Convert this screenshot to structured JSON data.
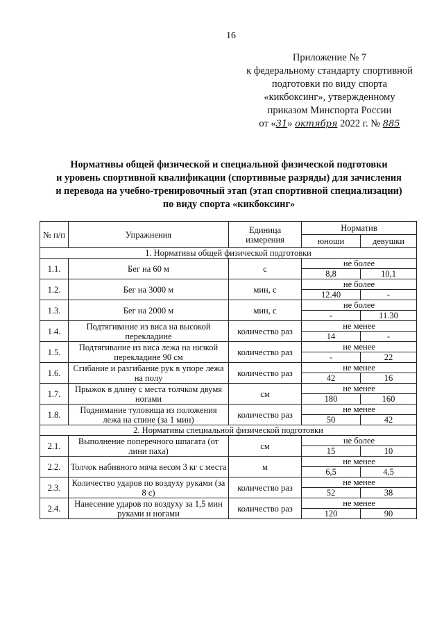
{
  "page_number": "16",
  "appendix": {
    "line1": "Приложение № 7",
    "line2": "к федеральному стандарту спортивной",
    "line3": "подготовки по виду спорта",
    "line4": "«кикбоксинг», утвержденному",
    "line5": "приказом Минспорта России",
    "date_prefix": "от «",
    "day": "31",
    "date_mid": "»",
    "month": "октября",
    "year": "2022 г. №",
    "number": "885"
  },
  "title": {
    "line1": "Нормативы общей физической и специальной физической подготовки",
    "line2": "и уровень спортивной квалификации (спортивные разряды) для зачисления",
    "line3": "и перевода на учебно-тренировочный этап (этап спортивной специализации)",
    "line4": "по виду спорта «кикбоксинг»"
  },
  "table": {
    "headers": {
      "num": "№ п/п",
      "exercise": "Упражнения",
      "unit": "Единица измерения",
      "norm": "Норматив",
      "boys": "юноши",
      "girls": "девушки"
    },
    "sections": [
      {
        "title": "1. Нормативы общей физической подготовки",
        "rows": [
          {
            "num": "1.1.",
            "exercise": "Бег на 60 м",
            "unit": "с",
            "cond": "не более",
            "boys": "8,8",
            "girls": "10,1"
          },
          {
            "num": "1.2.",
            "exercise": "Бег на 3000 м",
            "unit": "мин, с",
            "cond": "не более",
            "boys": "12.40",
            "girls": "-"
          },
          {
            "num": "1.3.",
            "exercise": "Бег на 2000 м",
            "unit": "мин, с",
            "cond": "не более",
            "boys": "-",
            "girls": "11.30"
          },
          {
            "num": "1.4.",
            "exercise": "Подтягивание из виса на высокой перекладине",
            "unit": "количество раз",
            "cond": "не менее",
            "boys": "14",
            "girls": "-"
          },
          {
            "num": "1.5.",
            "exercise": "Подтягивание из виса лежа на низкой перекладине 90 см",
            "unit": "количество раз",
            "cond": "не менее",
            "boys": "-",
            "girls": "22"
          },
          {
            "num": "1.6.",
            "exercise": "Сгибание и разгибание рук в упоре лежа на полу",
            "unit": "количество раз",
            "cond": "не менее",
            "boys": "42",
            "girls": "16"
          },
          {
            "num": "1.7.",
            "exercise": "Прыжок в длину с места толчком двумя ногами",
            "unit": "см",
            "cond": "не менее",
            "boys": "180",
            "girls": "160"
          },
          {
            "num": "1.8.",
            "exercise": "Поднимание туловища из положения лежа на спине (за 1 мин)",
            "unit": "количество раз",
            "cond": "не менее",
            "boys": "50",
            "girls": "42"
          }
        ]
      },
      {
        "title": "2. Нормативы специальной физической подготовки",
        "rows": [
          {
            "num": "2.1.",
            "exercise": "Выполнение поперечного шпагата (от лини паха)",
            "unit": "см",
            "cond": "не более",
            "boys": "15",
            "girls": "10"
          },
          {
            "num": "2.2.",
            "exercise": "Толчок набивного мяча весом 3 кг с места",
            "unit": "м",
            "cond": "не менее",
            "boys": "6,5",
            "girls": "4,5"
          },
          {
            "num": "2.3.",
            "exercise": "Количество ударов по воздуху руками (за 8 с)",
            "unit": "количество раз",
            "cond": "не менее",
            "boys": "52",
            "girls": "38"
          },
          {
            "num": "2.4.",
            "exercise": "Нанесение ударов по воздуху за 1,5 мин руками и ногами",
            "unit": "количество раз",
            "cond": "не менее",
            "boys": "120",
            "girls": "90"
          }
        ]
      }
    ]
  }
}
